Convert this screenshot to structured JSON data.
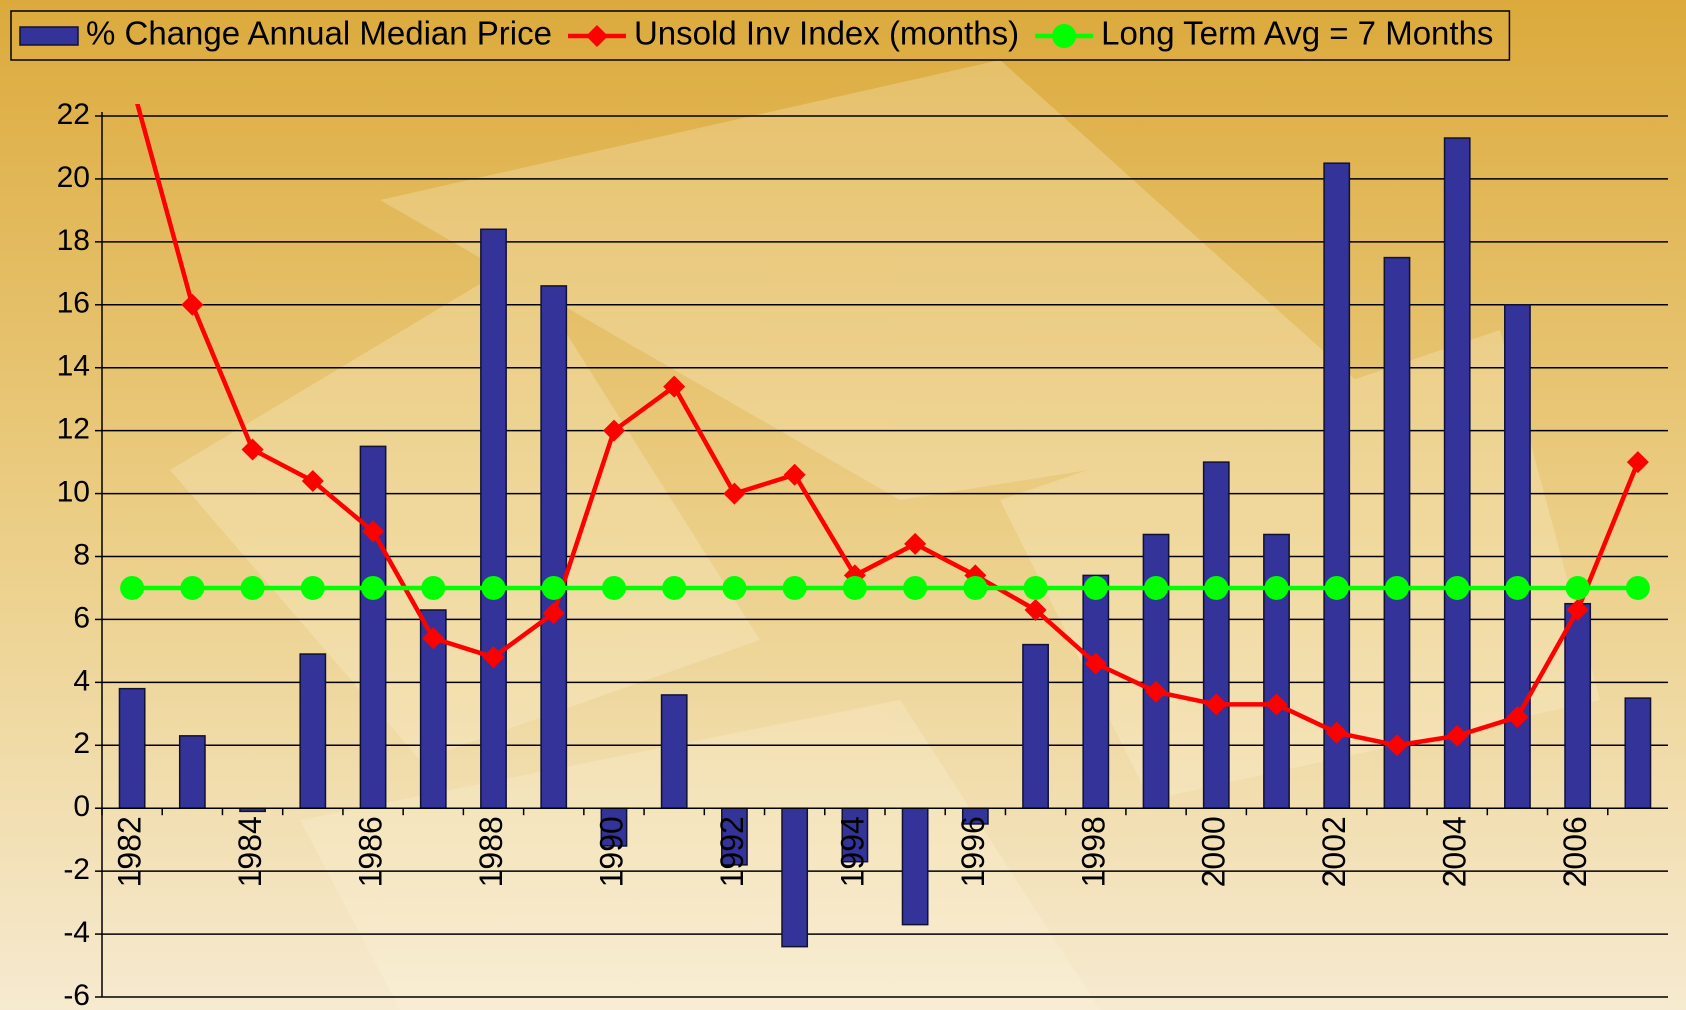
{
  "chart_data": {
    "type": "bar",
    "categories": [
      "1982",
      null,
      "1984",
      null,
      "1986",
      null,
      "1988",
      null,
      "1990",
      null,
      "1992",
      null,
      "1994",
      null,
      "1996",
      null,
      "1998",
      null,
      "2000",
      null,
      "2002",
      null,
      "2004",
      null,
      "2006",
      null
    ],
    "series": [
      {
        "name": "% Change Annual Median Price",
        "type": "bar",
        "color": "#333399",
        "values": [
          3.8,
          2.3,
          -0.1,
          4.9,
          11.5,
          6.3,
          18.4,
          16.6,
          -1.2,
          3.6,
          -1.8,
          -4.4,
          -1.7,
          -3.7,
          -0.5,
          5.2,
          7.4,
          8.7,
          11.0,
          8.7,
          20.5,
          17.5,
          21.3,
          16.0,
          6.5,
          3.5
        ]
      },
      {
        "name": "Unsold Inv Index (months)",
        "type": "line",
        "marker": "diamond",
        "color": "#ff0000",
        "values": [
          23,
          16,
          11.4,
          10.4,
          8.8,
          5.4,
          4.8,
          6.2,
          12,
          13.4,
          10,
          10.6,
          7.4,
          8.4,
          7.4,
          6.3,
          4.6,
          3.7,
          3.3,
          3.3,
          2.4,
          2.0,
          2.3,
          2.9,
          6.3,
          11
        ]
      },
      {
        "name": "Long Term Avg = 7 Months",
        "type": "line",
        "marker": "circle",
        "color": "#00ff00",
        "values": [
          7,
          7,
          7,
          7,
          7,
          7,
          7,
          7,
          7,
          7,
          7,
          7,
          7,
          7,
          7,
          7,
          7,
          7,
          7,
          7,
          7,
          7,
          7,
          7,
          7,
          7
        ]
      }
    ],
    "ylim": [
      -6,
      22
    ],
    "yticks": [
      -6,
      -4,
      -2,
      0,
      2,
      4,
      6,
      8,
      10,
      12,
      14,
      16,
      18,
      20,
      22
    ],
    "grid": true,
    "legend": "top"
  }
}
